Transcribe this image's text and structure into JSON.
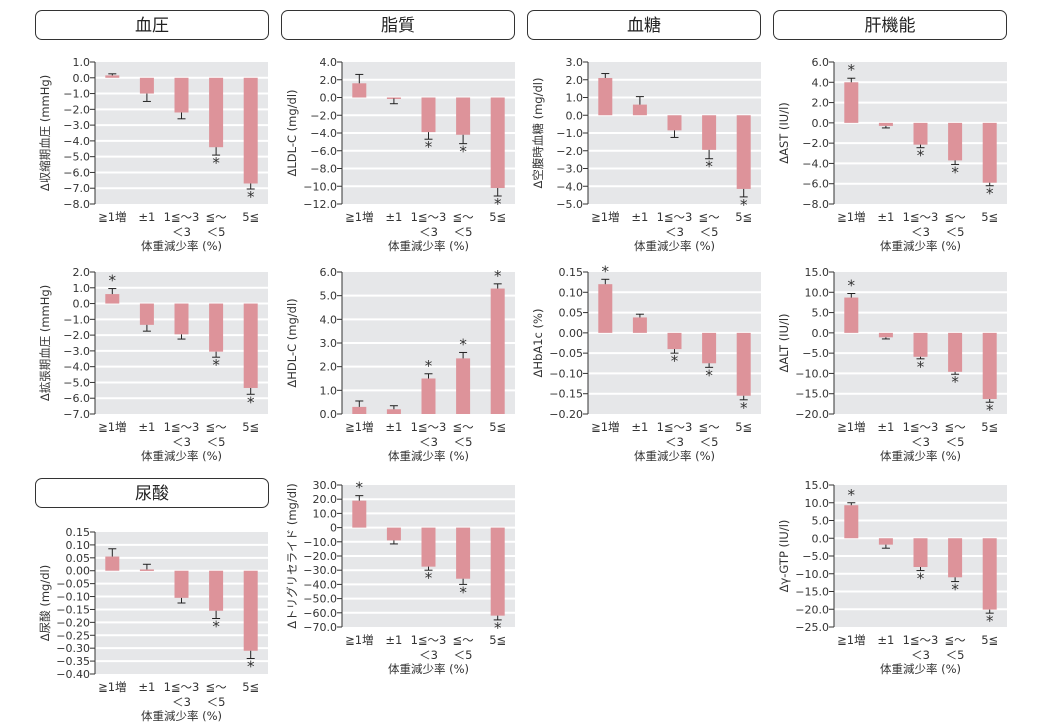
{
  "headers": [
    "血圧",
    "脂質",
    "血糖",
    "肝機能",
    "尿酸"
  ],
  "colors": {
    "bar": "#dd939a",
    "plot_bg": "#e6e7e9",
    "grid": "#ffffff",
    "text": "#333333"
  },
  "chart_data": [
    {
      "id": "sbp",
      "type": "bar",
      "ylabel": "Δ収縮期血圧 (mmHg)",
      "xlabel": "体重減少率 (%)",
      "categories": [
        "≧1増",
        "±1",
        "1≦〜3",
        "≦〜",
        "5≦"
      ],
      "categories_line2": [
        "",
        "",
        "＜3",
        "＜5",
        ""
      ],
      "values": [
        0.15,
        -1.0,
        -2.2,
        -4.4,
        -6.7
      ],
      "errors": [
        0.1,
        0.5,
        0.4,
        0.5,
        0.35
      ],
      "significant": [
        false,
        false,
        false,
        true,
        true
      ],
      "ylim": [
        -8,
        1
      ],
      "yticks": [
        "1.0",
        "0.0",
        "−1.0",
        "−2.0",
        "−3.0",
        "−4.0",
        "−5.0",
        "−6.0",
        "−7.0",
        "−8.0"
      ]
    },
    {
      "id": "ldl",
      "type": "bar",
      "ylabel": "ΔLDL-C (mg/dl)",
      "xlabel": "体重減少率 (%)",
      "categories": [
        "≧1増",
        "±1",
        "1≦〜3",
        "≦〜",
        "5≦"
      ],
      "categories_line2": [
        "",
        "",
        "＜3",
        "＜5",
        ""
      ],
      "values": [
        1.6,
        -0.1,
        -3.9,
        -4.2,
        -10.2
      ],
      "errors": [
        1.0,
        0.6,
        0.8,
        1.0,
        0.9
      ],
      "significant": [
        false,
        false,
        true,
        true,
        true
      ],
      "ylim": [
        -12,
        4
      ],
      "yticks": [
        "4.0",
        "2.0",
        "0.0",
        "−2.0",
        "−4.0",
        "−6.0",
        "−8.0",
        "−10.0",
        "−12.0"
      ]
    },
    {
      "id": "fpg",
      "type": "bar",
      "ylabel": "Δ空腹時血糖 (mg/dl)",
      "xlabel": "体重減少率 (%)",
      "categories": [
        "≧1増",
        "±1",
        "1≦〜3",
        "≦〜",
        "5≦"
      ],
      "categories_line2": [
        "",
        "",
        "＜3",
        "＜5",
        ""
      ],
      "values": [
        2.1,
        0.6,
        -0.85,
        -1.95,
        -4.15
      ],
      "errors": [
        0.25,
        0.45,
        0.4,
        0.5,
        0.45
      ],
      "significant": [
        false,
        false,
        false,
        true,
        true
      ],
      "ylim": [
        -5,
        3
      ],
      "yticks": [
        "3.0",
        "2.0",
        "1.0",
        "0.0",
        "−1.0",
        "−2.0",
        "−3.0",
        "−4.0",
        "−5.0"
      ]
    },
    {
      "id": "ast",
      "type": "bar",
      "ylabel": "ΔAST (IU/l)",
      "xlabel": "体重減少率 (%)",
      "categories": [
        "≧1増",
        "±1",
        "1≦〜3",
        "≦〜",
        "5≦"
      ],
      "categories_line2": [
        "",
        "",
        "＜3",
        "＜5",
        ""
      ],
      "values": [
        4.0,
        -0.3,
        -2.15,
        -3.7,
        -5.9
      ],
      "errors": [
        0.4,
        0.2,
        0.3,
        0.4,
        0.3
      ],
      "significant": [
        true,
        false,
        true,
        true,
        true
      ],
      "ylim": [
        -8,
        6
      ],
      "yticks": [
        "6.0",
        "4.0",
        "2.0",
        "0.0",
        "−2.0",
        "−4.0",
        "−6.0",
        "−8.0"
      ]
    },
    {
      "id": "dbp",
      "type": "bar",
      "ylabel": "Δ拡張期血圧 (mmHg)",
      "xlabel": "体重減少率 (%)",
      "categories": [
        "≧1増",
        "±1",
        "1≦〜3",
        "≦〜",
        "5≦"
      ],
      "categories_line2": [
        "",
        "",
        "＜3",
        "＜5",
        ""
      ],
      "values": [
        0.6,
        -1.35,
        -1.95,
        -3.05,
        -5.35
      ],
      "errors": [
        0.35,
        0.4,
        0.3,
        0.35,
        0.4
      ],
      "significant": [
        true,
        false,
        false,
        true,
        true
      ],
      "ylim": [
        -7,
        2
      ],
      "yticks": [
        "2.0",
        "1.0",
        "0.0",
        "−1.0",
        "−2.0",
        "−3.0",
        "−4.0",
        "−5.0",
        "−6.0",
        "−7.0"
      ]
    },
    {
      "id": "hdl",
      "type": "bar",
      "ylabel": "ΔHDL-C (mg/dl)",
      "xlabel": "体重減少率 (%)",
      "categories": [
        "≧1増",
        "±1",
        "1≦〜3",
        "≦〜",
        "5≦"
      ],
      "categories_line2": [
        "",
        "",
        "＜3",
        "＜5",
        ""
      ],
      "values": [
        0.3,
        0.2,
        1.5,
        2.35,
        5.3
      ],
      "errors": [
        0.25,
        0.15,
        0.2,
        0.25,
        0.2
      ],
      "significant": [
        false,
        false,
        true,
        true,
        true
      ],
      "ylim": [
        0,
        6
      ],
      "yticks": [
        "6.0",
        "5.0",
        "4.0",
        "3.0",
        "2.0",
        "1.0",
        "0.0"
      ]
    },
    {
      "id": "hba1c",
      "type": "bar",
      "ylabel": "ΔHbA1c (%)",
      "xlabel": "体重減少率 (%)",
      "categories": [
        "≧1増",
        "±1",
        "1≦〜3",
        "≦〜",
        "5≦"
      ],
      "categories_line2": [
        "",
        "",
        "＜3",
        "＜5",
        ""
      ],
      "values": [
        0.12,
        0.038,
        -0.04,
        -0.075,
        -0.155
      ],
      "errors": [
        0.012,
        0.008,
        0.01,
        0.01,
        0.01
      ],
      "significant": [
        true,
        false,
        true,
        true,
        true
      ],
      "ylim": [
        -0.2,
        0.15
      ],
      "yticks": [
        "0.15",
        "0.10",
        "0.05",
        "0.00",
        "−0.05",
        "−0.10",
        "−0.15",
        "−0.20"
      ]
    },
    {
      "id": "alt",
      "type": "bar",
      "ylabel": "ΔALT (IU/l)",
      "xlabel": "体重減少率 (%)",
      "categories": [
        "≧1増",
        "±1",
        "1≦〜3",
        "≦〜",
        "5≦"
      ],
      "categories_line2": [
        "",
        "",
        "＜3",
        "＜5",
        ""
      ],
      "values": [
        8.7,
        -1.1,
        -5.9,
        -9.6,
        -16.3
      ],
      "errors": [
        1.0,
        0.4,
        0.5,
        0.6,
        0.8
      ],
      "significant": [
        true,
        false,
        true,
        true,
        true
      ],
      "ylim": [
        -20,
        15
      ],
      "yticks": [
        "15.0",
        "10.0",
        "5.0",
        "0.0",
        "−5.0",
        "−10.0",
        "−15.0",
        "−20.0"
      ]
    },
    {
      "id": "ua",
      "type": "bar",
      "ylabel": "Δ尿酸 (mg/dl)",
      "xlabel": "体重減少率 (%)",
      "categories": [
        "≧1増",
        "±1",
        "1≦〜3",
        "≦〜",
        "5≦"
      ],
      "categories_line2": [
        "",
        "",
        "＜3",
        "＜5",
        ""
      ],
      "values": [
        0.055,
        0.005,
        -0.105,
        -0.155,
        -0.31
      ],
      "errors": [
        0.03,
        0.02,
        0.02,
        0.03,
        0.03
      ],
      "significant": [
        false,
        false,
        false,
        true,
        true
      ],
      "ylim": [
        -0.4,
        0.15
      ],
      "yticks": [
        "0.15",
        "0.10",
        "0.05",
        "0.00",
        "−0.05",
        "−0.10",
        "−0.15",
        "−0.20",
        "−0.25",
        "−0.30",
        "−0.35",
        "−0.40"
      ]
    },
    {
      "id": "tg",
      "type": "bar",
      "ylabel": "Δトリグリセライド (mg/dl)",
      "xlabel": "体重減少率 (%)",
      "categories": [
        "≧1増",
        "±1",
        "1≦〜3",
        "≦〜",
        "5≦"
      ],
      "categories_line2": [
        "",
        "",
        "＜3",
        "＜5",
        ""
      ],
      "values": [
        19,
        -9,
        -27.5,
        -36,
        -62
      ],
      "errors": [
        3.5,
        2.5,
        2.5,
        4,
        3
      ],
      "significant": [
        true,
        false,
        true,
        true,
        true
      ],
      "ylim": [
        -70,
        30
      ],
      "yticks": [
        "30.0",
        "20.0",
        "10.0",
        "0",
        "−10.0",
        "−20.0",
        "−30.0",
        "−40.0",
        "−50.0",
        "−60.0",
        "−70.0"
      ]
    },
    {
      "id": "ggt",
      "type": "bar",
      "ylabel": "Δγ-GTP (IU/l)",
      "xlabel": "体重減少率 (%)",
      "categories": [
        "≧1増",
        "±1",
        "1≦〜3",
        "≦〜",
        "5≦"
      ],
      "categories_line2": [
        "",
        "",
        "＜3",
        "＜5",
        ""
      ],
      "values": [
        9.3,
        -1.8,
        -8.1,
        -11,
        -20.1
      ],
      "errors": [
        0.7,
        1.0,
        1.0,
        1.2,
        1.0
      ],
      "significant": [
        true,
        false,
        true,
        true,
        true
      ],
      "ylim": [
        -25,
        15
      ],
      "yticks": [
        "15.0",
        "10.0",
        "5.0",
        "0.0",
        "−5.0",
        "−10.0",
        "−15.0",
        "−20.0",
        "−25.0"
      ]
    }
  ]
}
